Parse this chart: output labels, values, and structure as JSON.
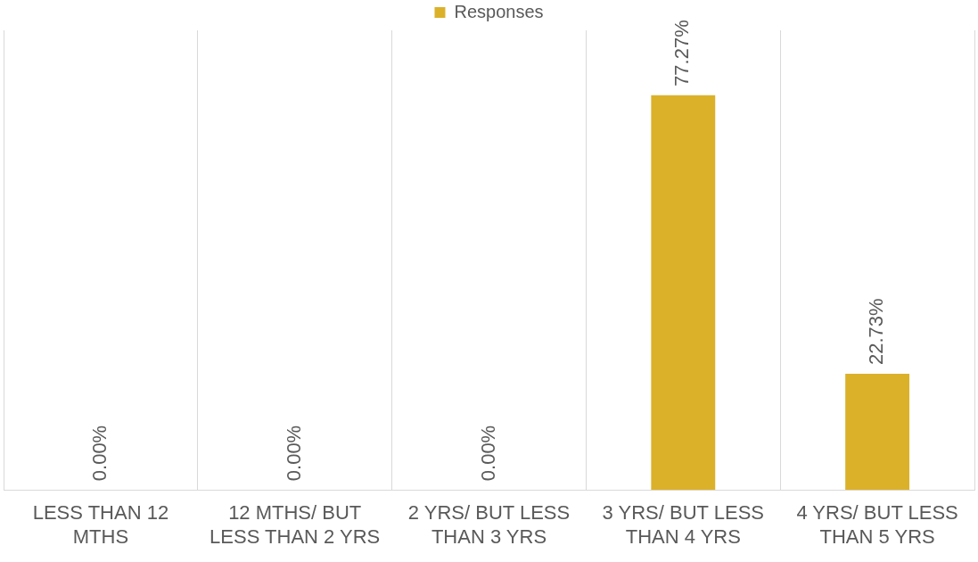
{
  "chart_data": {
    "type": "bar",
    "categories": [
      "LESS THAN 12 MTHS",
      "12 MTHS/ BUT LESS THAN 2 YRS",
      "2 YRS/ BUT LESS THAN 3 YRS",
      "3 YRS/ BUT LESS THAN 4 YRS",
      "4 YRS/ BUT LESS THAN 5 YRS"
    ],
    "series": [
      {
        "name": "Responses",
        "color": "#dbb12a",
        "values": [
          0,
          0,
          0,
          77.27,
          22.73
        ],
        "value_labels": [
          "0.00%",
          "0.00%",
          "0.00%",
          "77.27%",
          "22.73%"
        ]
      }
    ],
    "ylim": [
      0,
      90
    ],
    "grid": "x",
    "legend": "top"
  }
}
